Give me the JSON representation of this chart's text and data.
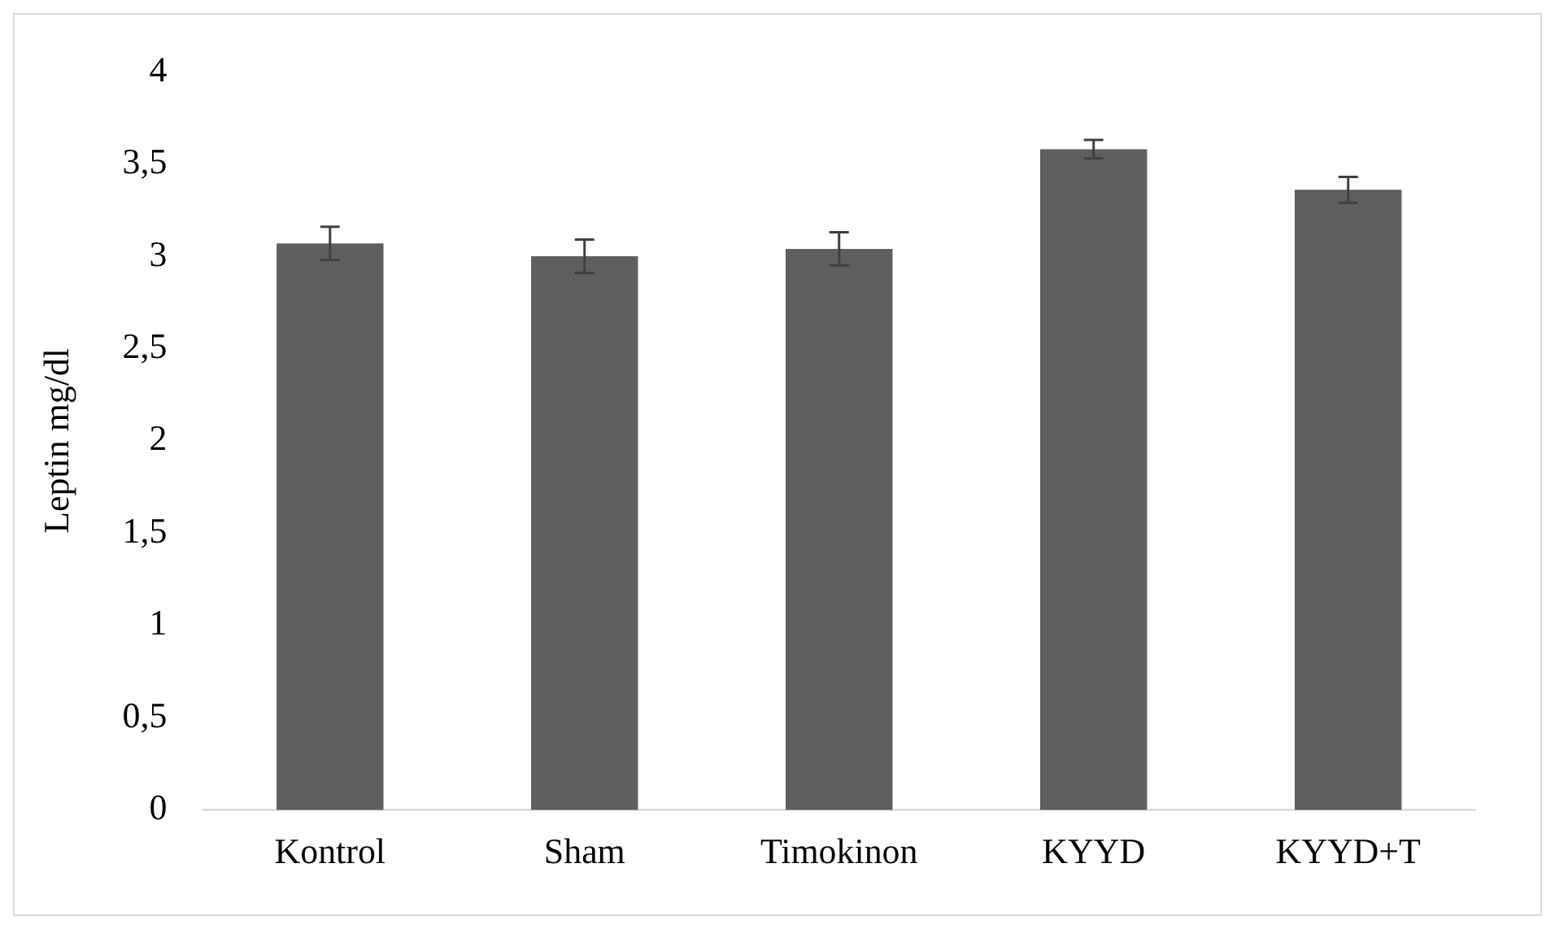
{
  "chart_data": {
    "type": "bar",
    "ylabel": "Leptin mg/dl",
    "categories": [
      "Kontrol",
      "Sham",
      "Timokinon",
      "KYYD",
      "KYYD+T"
    ],
    "values": [
      3.07,
      3.0,
      3.04,
      3.58,
      3.36
    ],
    "errors": [
      0.09,
      0.09,
      0.09,
      0.05,
      0.07
    ],
    "color": "#5f5f5f",
    "ylim": [
      0,
      4
    ],
    "yticks": [
      0,
      {
        "value": 0.5,
        "label": "0,5"
      },
      1,
      {
        "value": 1.5,
        "label": "1,5"
      },
      2,
      {
        "value": 2.5,
        "label": "2,5"
      },
      3,
      {
        "value": 3.5,
        "label": "3,5"
      },
      4
    ],
    "grid": false,
    "legend": false
  }
}
